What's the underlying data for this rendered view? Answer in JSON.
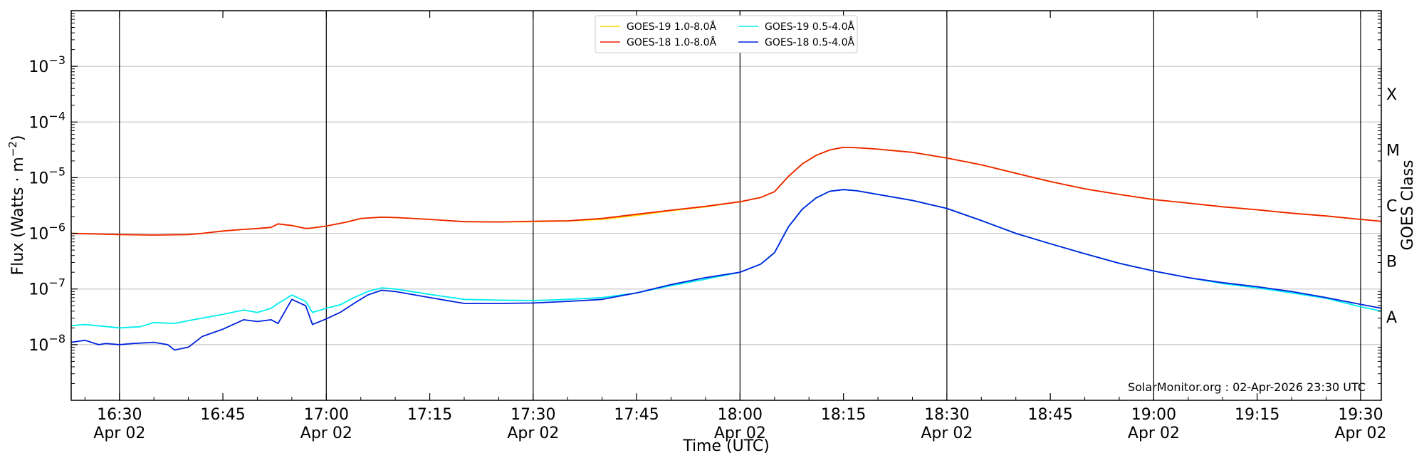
{
  "chart_data": {
    "type": "line",
    "title": "",
    "xlabel": "Time (UTC)",
    "ylabel": "Flux (Watts · m",
    "ylabel_superscript": "−2",
    "ylabel_suffix": ")",
    "y2label": "GOES Class",
    "y_scale": "log",
    "ylim": [
      1e-09,
      0.01
    ],
    "xlim": [
      "16:23",
      "19:33"
    ],
    "grid": {
      "horizontal": true,
      "vertical_major": true
    },
    "y_ticks": [
      {
        "value": 1e-08,
        "base": "10",
        "exp": "−8"
      },
      {
        "value": 1e-07,
        "base": "10",
        "exp": "−7"
      },
      {
        "value": 1e-06,
        "base": "10",
        "exp": "−6"
      },
      {
        "value": 1e-05,
        "base": "10",
        "exp": "−5"
      },
      {
        "value": 0.0001,
        "base": "10",
        "exp": "−4"
      },
      {
        "value": 0.001,
        "base": "10",
        "exp": "−3"
      }
    ],
    "x_ticks": [
      {
        "time": "16:30",
        "label": "16:30",
        "sublabel": "Apr 02",
        "major": true
      },
      {
        "time": "16:45",
        "label": "16:45",
        "sublabel": "",
        "major": false
      },
      {
        "time": "17:00",
        "label": "17:00",
        "sublabel": "Apr 02",
        "major": true
      },
      {
        "time": "17:15",
        "label": "17:15",
        "sublabel": "",
        "major": false
      },
      {
        "time": "17:30",
        "label": "17:30",
        "sublabel": "Apr 02",
        "major": true
      },
      {
        "time": "17:45",
        "label": "17:45",
        "sublabel": "",
        "major": false
      },
      {
        "time": "18:00",
        "label": "18:00",
        "sublabel": "Apr 02",
        "major": true
      },
      {
        "time": "18:15",
        "label": "18:15",
        "sublabel": "",
        "major": false
      },
      {
        "time": "18:30",
        "label": "18:30",
        "sublabel": "Apr 02",
        "major": true
      },
      {
        "time": "18:45",
        "label": "18:45",
        "sublabel": "",
        "major": false
      },
      {
        "time": "19:00",
        "label": "19:00",
        "sublabel": "Apr 02",
        "major": true
      },
      {
        "time": "19:15",
        "label": "19:15",
        "sublabel": "",
        "major": false
      },
      {
        "time": "19:30",
        "label": "19:30",
        "sublabel": "Apr 02",
        "major": true
      }
    ],
    "class_labels": [
      {
        "label": "A",
        "value": 3.16e-08
      },
      {
        "label": "B",
        "value": 3.16e-07
      },
      {
        "label": "C",
        "value": 3.16e-06
      },
      {
        "label": "M",
        "value": 3.16e-05
      },
      {
        "label": "X",
        "value": 0.000316
      }
    ],
    "legend": {
      "position": "top-center",
      "entries": [
        {
          "text": "GOES-19 1.0-8.0Å",
          "series": 0
        },
        {
          "text": "GOES-18 1.0-8.0Å",
          "series": 1
        },
        {
          "text": "GOES-19 0.5-4.0Å",
          "series": 2
        },
        {
          "text": "GOES-18 0.5-4.0Å",
          "series": 3
        }
      ]
    },
    "annotation": "SolarMonitor.org : 02-Apr-2026 23:30 UTC",
    "series": [
      {
        "name": "GOES-19 1.0-8.0Å",
        "color": "#ffd700",
        "x": [
          "16:23",
          "16:30",
          "16:35",
          "16:40",
          "16:42",
          "16:45",
          "16:48",
          "16:50",
          "16:52",
          "16:53",
          "16:55",
          "16:57",
          "16:58",
          "17:00",
          "17:03",
          "17:05",
          "17:08",
          "17:10",
          "17:15",
          "17:20",
          "17:25",
          "17:30",
          "17:35",
          "17:40",
          "17:45",
          "17:50",
          "17:55",
          "18:00",
          "18:03",
          "18:05",
          "18:07",
          "18:09",
          "18:11",
          "18:13",
          "18:15",
          "18:17",
          "18:20",
          "18:25",
          "18:30",
          "18:35",
          "18:40",
          "18:45",
          "18:50",
          "18:55",
          "19:00",
          "19:05",
          "19:10",
          "19:15",
          "19:20",
          "19:25",
          "19:30",
          "19:33"
        ],
        "y": [
          1e-06,
          9.5e-07,
          9.3e-07,
          9.5e-07,
          1e-06,
          1.1e-06,
          1.18e-06,
          1.22e-06,
          1.28e-06,
          1.48e-06,
          1.38e-06,
          1.22e-06,
          1.25e-06,
          1.35e-06,
          1.6e-06,
          1.85e-06,
          1.95e-06,
          1.92e-06,
          1.78e-06,
          1.62e-06,
          1.6e-06,
          1.62e-06,
          1.67e-06,
          1.78e-06,
          2.1e-06,
          2.55e-06,
          3e-06,
          3.7e-06,
          4.4e-06,
          5.6e-06,
          1.05e-05,
          1.75e-05,
          2.5e-05,
          3.15e-05,
          3.5e-05,
          3.45e-05,
          3.25e-05,
          2.85e-05,
          2.25e-05,
          1.7e-05,
          1.2e-05,
          8.5e-06,
          6.3e-06,
          5e-06,
          4.05e-06,
          3.5e-06,
          3e-06,
          2.65e-06,
          2.3e-06,
          2.05e-06,
          1.78e-06,
          1.65e-06
        ]
      },
      {
        "name": "GOES-18 1.0-8.0Å",
        "color": "#ee2200",
        "x": [
          "16:23",
          "16:30",
          "16:35",
          "16:40",
          "16:42",
          "16:45",
          "16:48",
          "16:50",
          "16:52",
          "16:53",
          "16:55",
          "16:57",
          "16:58",
          "17:00",
          "17:03",
          "17:05",
          "17:08",
          "17:10",
          "17:15",
          "17:20",
          "17:25",
          "17:30",
          "17:35",
          "17:40",
          "17:45",
          "17:50",
          "17:55",
          "18:00",
          "18:03",
          "18:05",
          "18:07",
          "18:09",
          "18:11",
          "18:13",
          "18:15",
          "18:17",
          "18:20",
          "18:25",
          "18:30",
          "18:35",
          "18:40",
          "18:45",
          "18:50",
          "18:55",
          "19:00",
          "19:05",
          "19:10",
          "19:15",
          "19:20",
          "19:25",
          "19:30",
          "19:33"
        ],
        "y": [
          1e-06,
          9.5e-07,
          9.3e-07,
          9.5e-07,
          1e-06,
          1.1e-06,
          1.18e-06,
          1.22e-06,
          1.28e-06,
          1.48e-06,
          1.38e-06,
          1.22e-06,
          1.25e-06,
          1.35e-06,
          1.6e-06,
          1.85e-06,
          1.95e-06,
          1.92e-06,
          1.78e-06,
          1.62e-06,
          1.6e-06,
          1.65e-06,
          1.68e-06,
          1.85e-06,
          2.2e-06,
          2.6e-06,
          3.05e-06,
          3.7e-06,
          4.4e-06,
          5.6e-06,
          1.05e-05,
          1.75e-05,
          2.5e-05,
          3.15e-05,
          3.5e-05,
          3.45e-05,
          3.25e-05,
          2.85e-05,
          2.25e-05,
          1.7e-05,
          1.2e-05,
          8.5e-06,
          6.3e-06,
          5e-06,
          4.05e-06,
          3.5e-06,
          3e-06,
          2.65e-06,
          2.3e-06,
          2.05e-06,
          1.78e-06,
          1.65e-06
        ]
      },
      {
        "name": "GOES-19 0.5-4.0Å",
        "color": "#00eeee",
        "x": [
          "16:23",
          "16:25",
          "16:30",
          "16:33",
          "16:35",
          "16:38",
          "16:40",
          "16:42",
          "16:45",
          "16:48",
          "16:50",
          "16:52",
          "16:53",
          "16:55",
          "16:57",
          "16:58",
          "17:00",
          "17:02",
          "17:04",
          "17:06",
          "17:08",
          "17:10",
          "17:15",
          "17:20",
          "17:25",
          "17:30",
          "17:35",
          "17:40",
          "17:45",
          "17:50",
          "17:55",
          "18:00",
          "18:03",
          "18:05",
          "18:07",
          "18:09",
          "18:11",
          "18:13",
          "18:15",
          "18:17",
          "18:20",
          "18:25",
          "18:30",
          "18:35",
          "18:40",
          "18:45",
          "18:50",
          "18:55",
          "19:00",
          "19:05",
          "19:10",
          "19:15",
          "19:20",
          "19:25",
          "19:30",
          "19:33"
        ],
        "y": [
          2.2e-08,
          2.3e-08,
          2e-08,
          2.1e-08,
          2.5e-08,
          2.4e-08,
          2.7e-08,
          3e-08,
          3.5e-08,
          4.2e-08,
          3.8e-08,
          4.5e-08,
          5.5e-08,
          7.8e-08,
          6e-08,
          3.8e-08,
          4.5e-08,
          5.2e-08,
          7e-08,
          9e-08,
          1.05e-07,
          1e-07,
          8e-08,
          6.5e-08,
          6.3e-08,
          6.2e-08,
          6.5e-08,
          7e-08,
          8.5e-08,
          1.15e-07,
          1.5e-07,
          2e-07,
          2.8e-07,
          4.5e-07,
          1.3e-06,
          2.7e-06,
          4.3e-06,
          5.7e-06,
          6.1e-06,
          5.8e-06,
          5e-06,
          3.9e-06,
          2.8e-06,
          1.7e-06,
          1e-06,
          6.5e-07,
          4.3e-07,
          2.9e-07,
          2.1e-07,
          1.6e-07,
          1.25e-07,
          1.05e-07,
          8.5e-08,
          6.8e-08,
          4.8e-08,
          4e-08
        ]
      },
      {
        "name": "GOES-18 0.5-4.0Å",
        "color": "#0022dd",
        "x": [
          "16:23",
          "16:25",
          "16:27",
          "16:28",
          "16:30",
          "16:32",
          "16:35",
          "16:37",
          "16:38",
          "16:40",
          "16:42",
          "16:45",
          "16:48",
          "16:50",
          "16:52",
          "16:53",
          "16:55",
          "16:57",
          "16:58",
          "17:00",
          "17:02",
          "17:04",
          "17:06",
          "17:08",
          "17:10",
          "17:15",
          "17:20",
          "17:25",
          "17:30",
          "17:35",
          "17:40",
          "17:45",
          "17:50",
          "17:55",
          "18:00",
          "18:03",
          "18:05",
          "18:07",
          "18:09",
          "18:11",
          "18:13",
          "18:15",
          "18:17",
          "18:20",
          "18:25",
          "18:30",
          "18:35",
          "18:40",
          "18:45",
          "18:50",
          "18:55",
          "19:00",
          "19:05",
          "19:10",
          "19:15",
          "19:20",
          "19:25",
          "19:30",
          "19:33"
        ],
        "y": [
          1.1e-08,
          1.2e-08,
          1e-08,
          1.05e-08,
          1e-08,
          1.05e-08,
          1.1e-08,
          1e-08,
          8e-09,
          9e-09,
          1.4e-08,
          1.9e-08,
          2.8e-08,
          2.6e-08,
          2.8e-08,
          2.4e-08,
          6.5e-08,
          5e-08,
          2.3e-08,
          2.9e-08,
          3.8e-08,
          5.5e-08,
          7.8e-08,
          9.5e-08,
          9e-08,
          7e-08,
          5.5e-08,
          5.5e-08,
          5.6e-08,
          6e-08,
          6.5e-08,
          8.5e-08,
          1.2e-07,
          1.6e-07,
          2e-07,
          2.8e-07,
          4.5e-07,
          1.3e-06,
          2.7e-06,
          4.3e-06,
          5.7e-06,
          6.1e-06,
          5.8e-06,
          5e-06,
          3.9e-06,
          2.8e-06,
          1.7e-06,
          1e-06,
          6.5e-07,
          4.3e-07,
          2.9e-07,
          2.1e-07,
          1.6e-07,
          1.3e-07,
          1.1e-07,
          9e-08,
          7e-08,
          5.3e-08,
          4.5e-08
        ]
      }
    ]
  }
}
